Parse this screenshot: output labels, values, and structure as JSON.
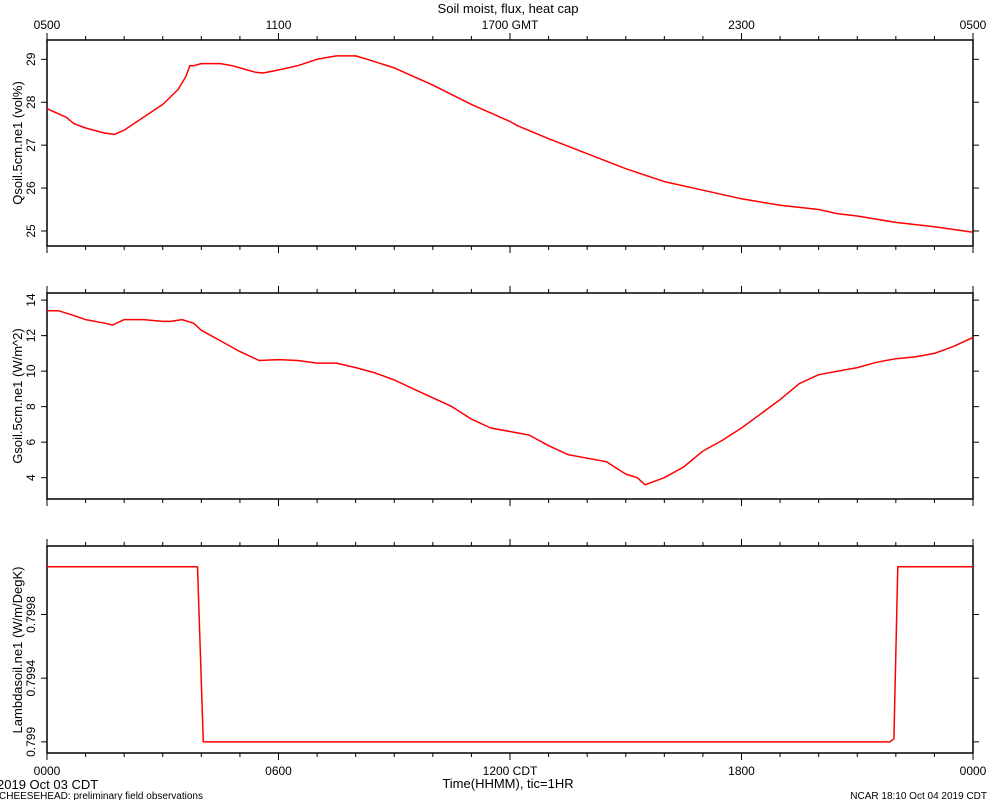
{
  "chart_data": {
    "type": "line",
    "title": "Soil moist, flux, heat cap",
    "top_axis_ticks": [
      "0500",
      "1100",
      "1700 GMT",
      "2300",
      "0500"
    ],
    "bottom_axis_ticks": [
      "0000",
      "0600",
      "1200 CDT",
      "1800",
      "0000"
    ],
    "xlabel": "Time(HHMM), tic=1HR",
    "date_label": "2019 Oct 03 CDT",
    "footer_left": "CHEESEHEAD: preliminary field observations",
    "footer_right": "NCAR 18:10 Oct 04 2019 CDT",
    "series_color": "#ff0000",
    "x_unit": "hours since 0000 CDT",
    "xlim": [
      0,
      24
    ],
    "panels": [
      {
        "ylabel": "Qsoil.5cm.ne1 (vol%)",
        "ylim": [
          24.65,
          29.45
        ],
        "yticks": [
          25,
          26,
          27,
          28,
          29
        ],
        "x": [
          0,
          0.5,
          0.7,
          1,
          1.5,
          1.75,
          2,
          2.5,
          3,
          3.4,
          3.6,
          3.7,
          3.8,
          4,
          4.5,
          4.8,
          5,
          5.4,
          5.6,
          6,
          6.5,
          7,
          7.5,
          8,
          8.3,
          9,
          10,
          11,
          12,
          12.2,
          13,
          14,
          15,
          16,
          17,
          18,
          19,
          19.5,
          20,
          20.5,
          21,
          22,
          23,
          24
        ],
        "values": [
          27.85,
          27.65,
          27.5,
          27.4,
          27.28,
          27.25,
          27.35,
          27.65,
          27.95,
          28.3,
          28.6,
          28.85,
          28.85,
          28.9,
          28.9,
          28.85,
          28.8,
          28.7,
          28.68,
          28.75,
          28.85,
          29.0,
          29.08,
          29.08,
          29.0,
          28.8,
          28.4,
          27.95,
          27.55,
          27.45,
          27.15,
          26.8,
          26.45,
          26.15,
          25.95,
          25.75,
          25.6,
          25.55,
          25.5,
          25.4,
          25.35,
          25.2,
          25.1,
          24.97
        ]
      },
      {
        "ylabel": "Gsoil.5cm.ne1 (W/m^2)",
        "ylim": [
          2.8,
          14.4
        ],
        "yticks": [
          4,
          6,
          8,
          10,
          12,
          14
        ],
        "x": [
          0,
          0.3,
          0.6,
          1,
          1.5,
          1.7,
          2,
          2.5,
          3,
          3.2,
          3.5,
          3.8,
          4,
          4.5,
          5,
          5.5,
          6,
          6.5,
          7,
          7.5,
          8,
          8.5,
          9,
          9.5,
          10,
          10.5,
          11,
          11.5,
          12,
          12.5,
          13,
          13.5,
          14,
          14.5,
          15,
          15.3,
          15.5,
          16,
          16.5,
          17,
          17.5,
          18,
          18.5,
          19,
          19.5,
          20,
          20.5,
          21,
          21.5,
          22,
          22.5,
          23,
          23.5,
          24
        ],
        "values": [
          13.4,
          13.4,
          13.2,
          12.9,
          12.7,
          12.6,
          12.9,
          12.9,
          12.8,
          12.8,
          12.9,
          12.7,
          12.3,
          11.7,
          11.1,
          10.6,
          10.65,
          10.6,
          10.45,
          10.45,
          10.2,
          9.9,
          9.5,
          9.0,
          8.5,
          8.0,
          7.3,
          6.8,
          6.6,
          6.4,
          5.8,
          5.3,
          5.1,
          4.9,
          4.2,
          4.0,
          3.6,
          4.0,
          4.6,
          5.5,
          6.1,
          6.8,
          7.6,
          8.4,
          9.3,
          9.8,
          10.0,
          10.2,
          10.5,
          10.7,
          10.8,
          11.0,
          11.4,
          11.9
        ]
      },
      {
        "ylabel": "Lambdasoil.ne1 (W/m/DegK)",
        "ylim": [
          0.79893,
          0.80023
        ],
        "yticks": [
          0.799,
          0.7994,
          0.7998
        ],
        "x": [
          0,
          3.9,
          4.05,
          21.85,
          21.95,
          22.05,
          24
        ],
        "values": [
          0.8001,
          0.8001,
          0.799,
          0.799,
          0.79902,
          0.8001,
          0.8001
        ]
      }
    ]
  }
}
